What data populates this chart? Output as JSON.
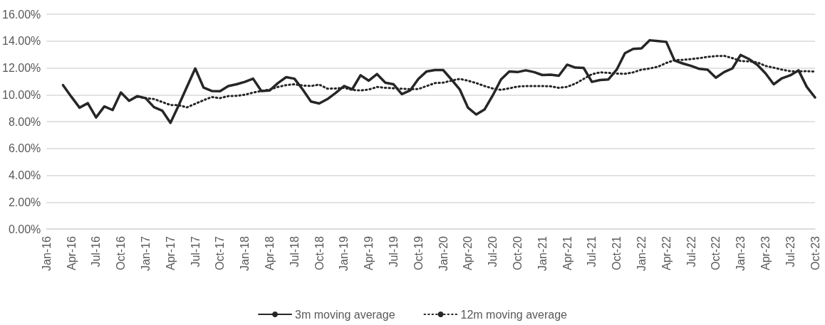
{
  "chart_data": {
    "type": "line",
    "categories": [
      "Jan-16",
      null,
      null,
      "Apr-16",
      null,
      null,
      "Jul-16",
      null,
      null,
      "Oct-16",
      null,
      null,
      "Jan-17",
      null,
      null,
      "Apr-17",
      null,
      null,
      "Jul-17",
      null,
      null,
      "Oct-17",
      null,
      null,
      "Jan-18",
      null,
      null,
      "Apr-18",
      null,
      null,
      "Jul-18",
      null,
      null,
      "Oct-18",
      null,
      null,
      "Jan-19",
      null,
      null,
      "Apr-19",
      null,
      null,
      "Jul-19",
      null,
      null,
      "Oct-19",
      null,
      null,
      "Jan-20",
      null,
      null,
      "Apr-20",
      null,
      null,
      "Jul-20",
      null,
      null,
      "Oct-20",
      null,
      null,
      "Jan-21",
      null,
      null,
      "Apr-21",
      null,
      null,
      "Jul-21",
      null,
      null,
      "Oct-21",
      null,
      null,
      "Jan-22",
      null,
      null,
      "Apr-22",
      null,
      null,
      "Jul-22",
      null,
      null,
      "Oct-22",
      null,
      null,
      "Jan-23",
      null,
      null,
      "Apr-23",
      null,
      null,
      "Jul-23",
      null,
      null,
      "Oct-23"
    ],
    "series": [
      {
        "name": "3m moving average",
        "color": "#262626",
        "line_style": "solid",
        "values": [
          null,
          null,
          10.72,
          9.86,
          9.04,
          9.37,
          8.31,
          9.13,
          8.86,
          10.17,
          9.55,
          9.9,
          9.74,
          9.08,
          8.82,
          7.91,
          9.22,
          10.6,
          11.96,
          10.54,
          10.28,
          10.26,
          10.65,
          10.78,
          10.96,
          11.2,
          10.28,
          10.32,
          10.87,
          11.31,
          11.2,
          10.4,
          9.5,
          9.35,
          9.68,
          10.14,
          10.65,
          10.41,
          11.45,
          11.05,
          11.54,
          10.9,
          10.78,
          10.05,
          10.32,
          11.18,
          11.74,
          11.84,
          11.84,
          11.14,
          10.41,
          9.04,
          8.53,
          8.9,
          9.95,
          11.14,
          11.74,
          11.69,
          11.82,
          11.69,
          11.47,
          11.5,
          11.42,
          12.24,
          12.02,
          12.0,
          10.96,
          11.1,
          11.14,
          11.87,
          13.1,
          13.42,
          13.46,
          14.06,
          14.0,
          13.94,
          12.55,
          12.33,
          12.15,
          11.93,
          11.87,
          11.27,
          11.69,
          11.96,
          12.97,
          12.66,
          12.24,
          11.6,
          10.78,
          11.23,
          11.45,
          11.82,
          10.59,
          9.8
        ]
      },
      {
        "name": "12m moving average",
        "color": "#262626",
        "line_style": "dotted",
        "values": [
          null,
          null,
          null,
          null,
          null,
          null,
          null,
          null,
          null,
          null,
          null,
          9.85,
          9.75,
          9.68,
          9.46,
          9.24,
          9.22,
          9.06,
          9.33,
          9.59,
          9.83,
          9.75,
          9.9,
          9.92,
          10.0,
          10.16,
          10.28,
          10.39,
          10.58,
          10.72,
          10.78,
          10.69,
          10.65,
          10.76,
          10.45,
          10.47,
          10.52,
          10.36,
          10.32,
          10.39,
          10.58,
          10.52,
          10.48,
          10.45,
          10.41,
          10.43,
          10.65,
          10.87,
          10.9,
          11.05,
          11.18,
          11.05,
          10.87,
          10.65,
          10.47,
          10.36,
          10.48,
          10.61,
          10.65,
          10.65,
          10.65,
          10.63,
          10.52,
          10.59,
          10.83,
          11.18,
          11.53,
          11.67,
          11.63,
          11.58,
          11.56,
          11.67,
          11.87,
          11.96,
          12.09,
          12.37,
          12.58,
          12.6,
          12.66,
          12.73,
          12.82,
          12.88,
          12.9,
          12.73,
          12.51,
          12.49,
          12.42,
          12.15,
          12.02,
          11.87,
          11.76,
          11.74,
          11.76,
          11.73
        ]
      }
    ],
    "ylim": [
      0,
      16
    ],
    "yticks": [
      {
        "value": 0,
        "label": "0.00%"
      },
      {
        "value": 2,
        "label": "2.00%"
      },
      {
        "value": 4,
        "label": "4.00%"
      },
      {
        "value": 6,
        "label": "6.00%"
      },
      {
        "value": 8,
        "label": "8.00%"
      },
      {
        "value": 10,
        "label": "10.00%"
      },
      {
        "value": 12,
        "label": "12.00%"
      },
      {
        "value": 14,
        "label": "14.00%"
      },
      {
        "value": 16,
        "label": "16.00%"
      }
    ],
    "grid": "y",
    "legend": "bottom",
    "marker": "none"
  }
}
